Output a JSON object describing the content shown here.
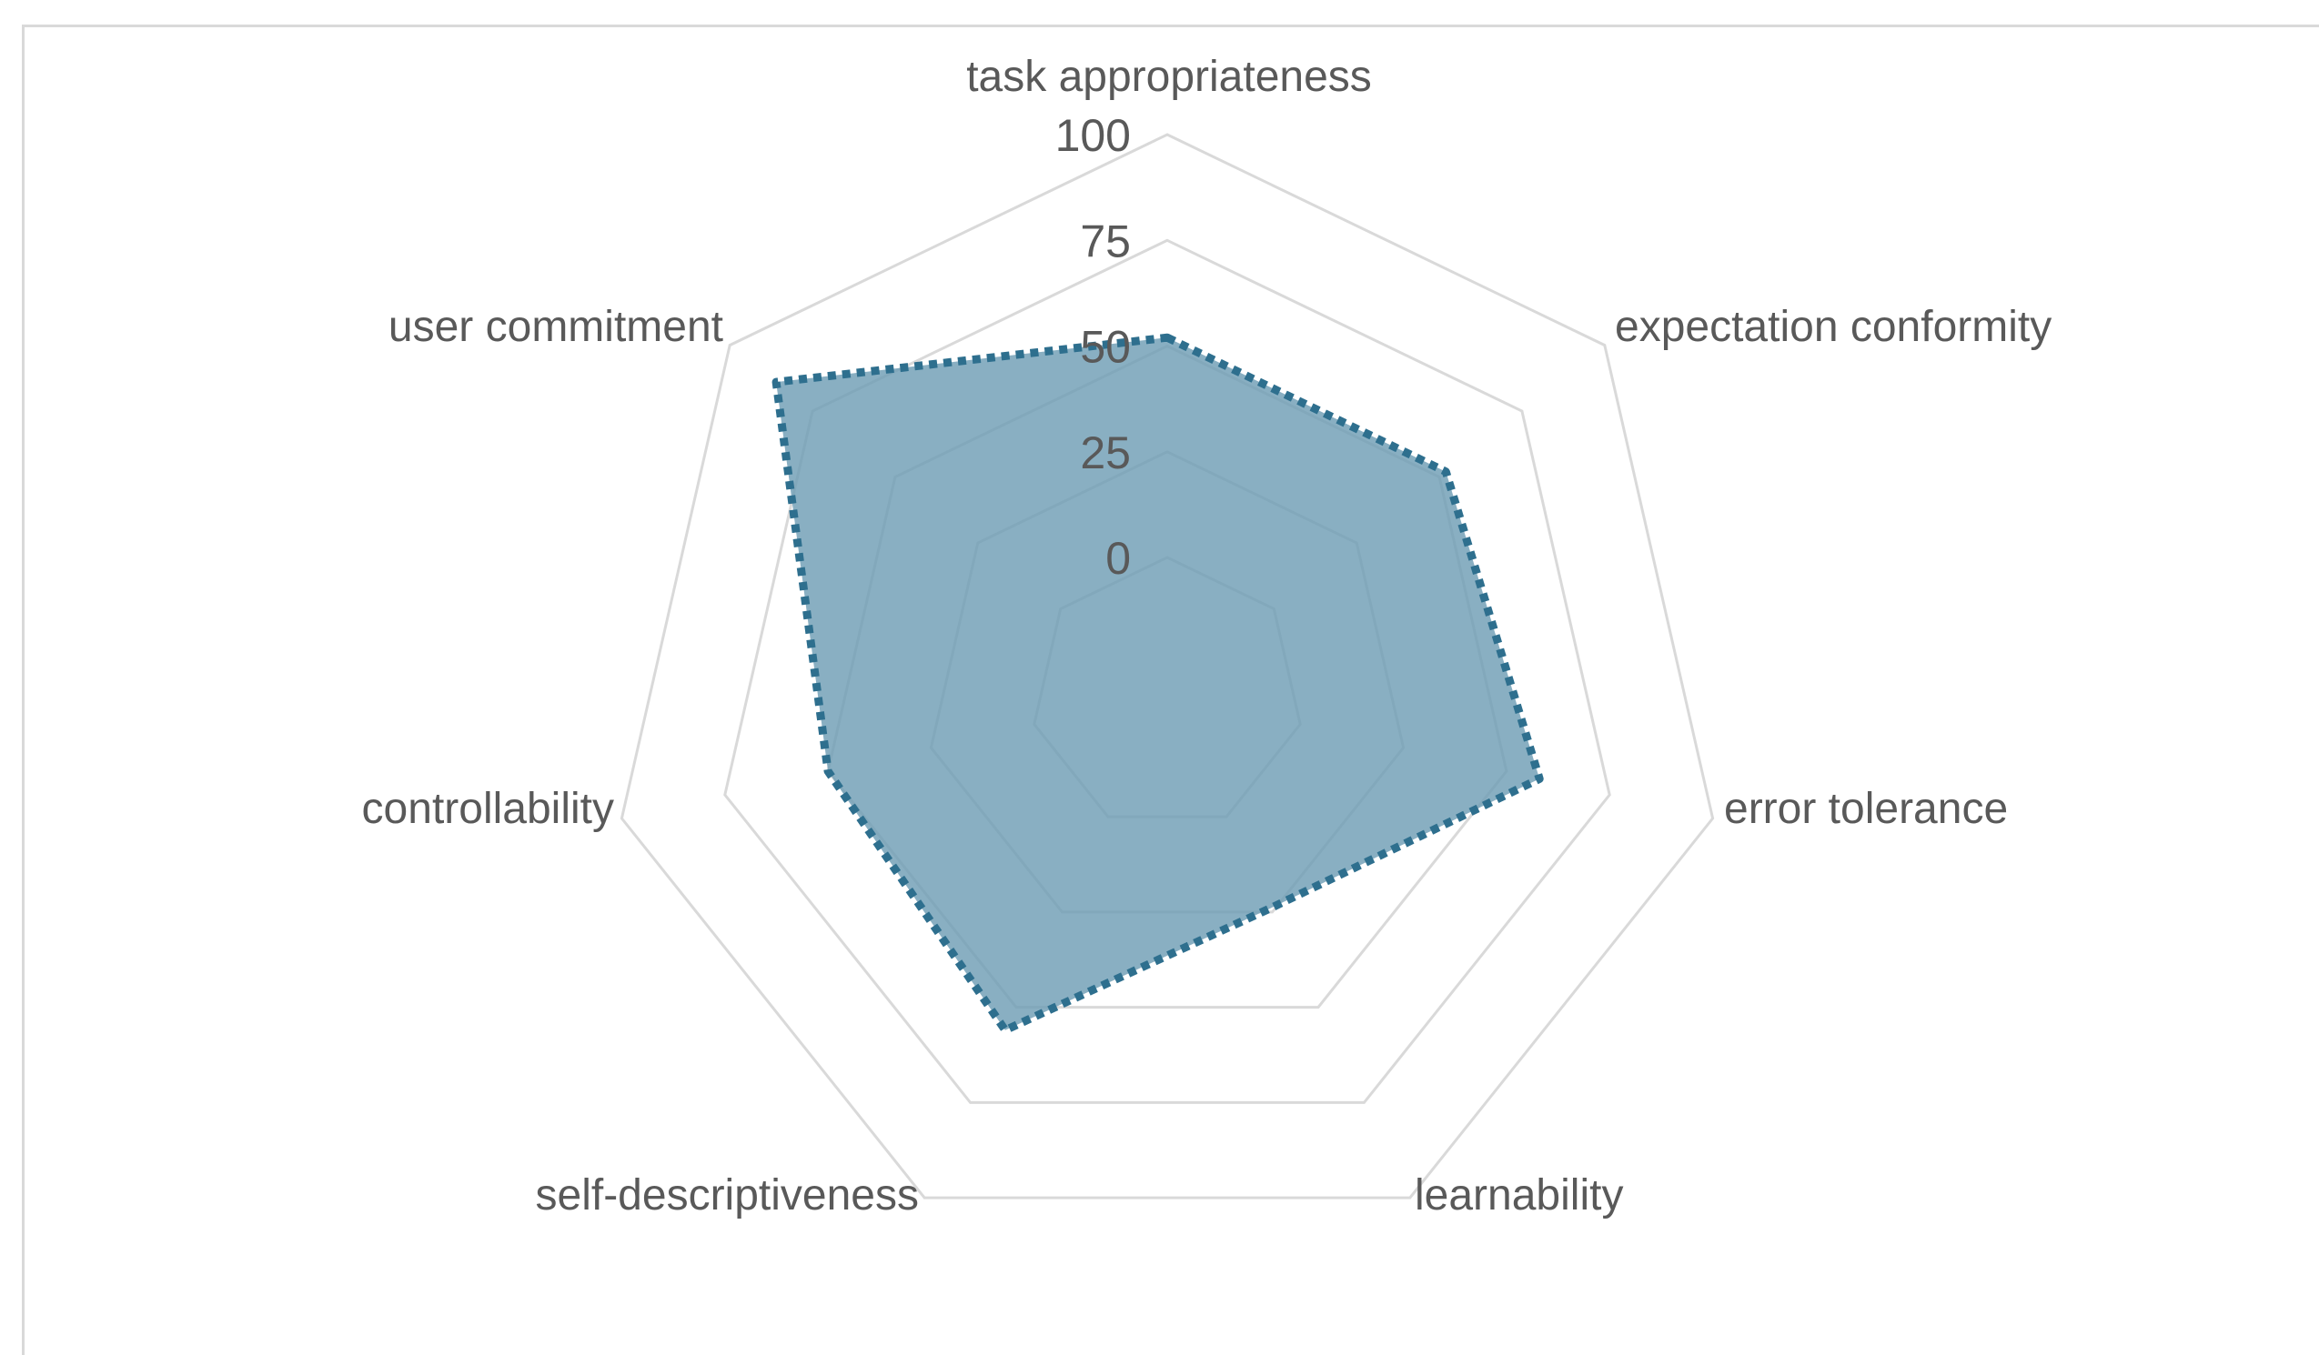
{
  "chart_data": {
    "type": "radar",
    "categories": [
      "task appropriateness",
      "expectation conformity",
      "error tolerance",
      "learnability",
      "self-descriptiveness",
      "controllability",
      "user commitment"
    ],
    "series": [
      {
        "values": [
          52,
          52,
          58,
          24,
          56,
          50,
          86
        ],
        "color": "#2e6f8e",
        "fill": "#6f9db5",
        "line_style": "dotted"
      }
    ],
    "ticks": [
      "0",
      "25",
      "50",
      "75",
      "100"
    ],
    "tick_values": [
      0,
      25,
      50,
      75,
      100
    ],
    "rlim": [
      0,
      100
    ],
    "grid": true
  }
}
